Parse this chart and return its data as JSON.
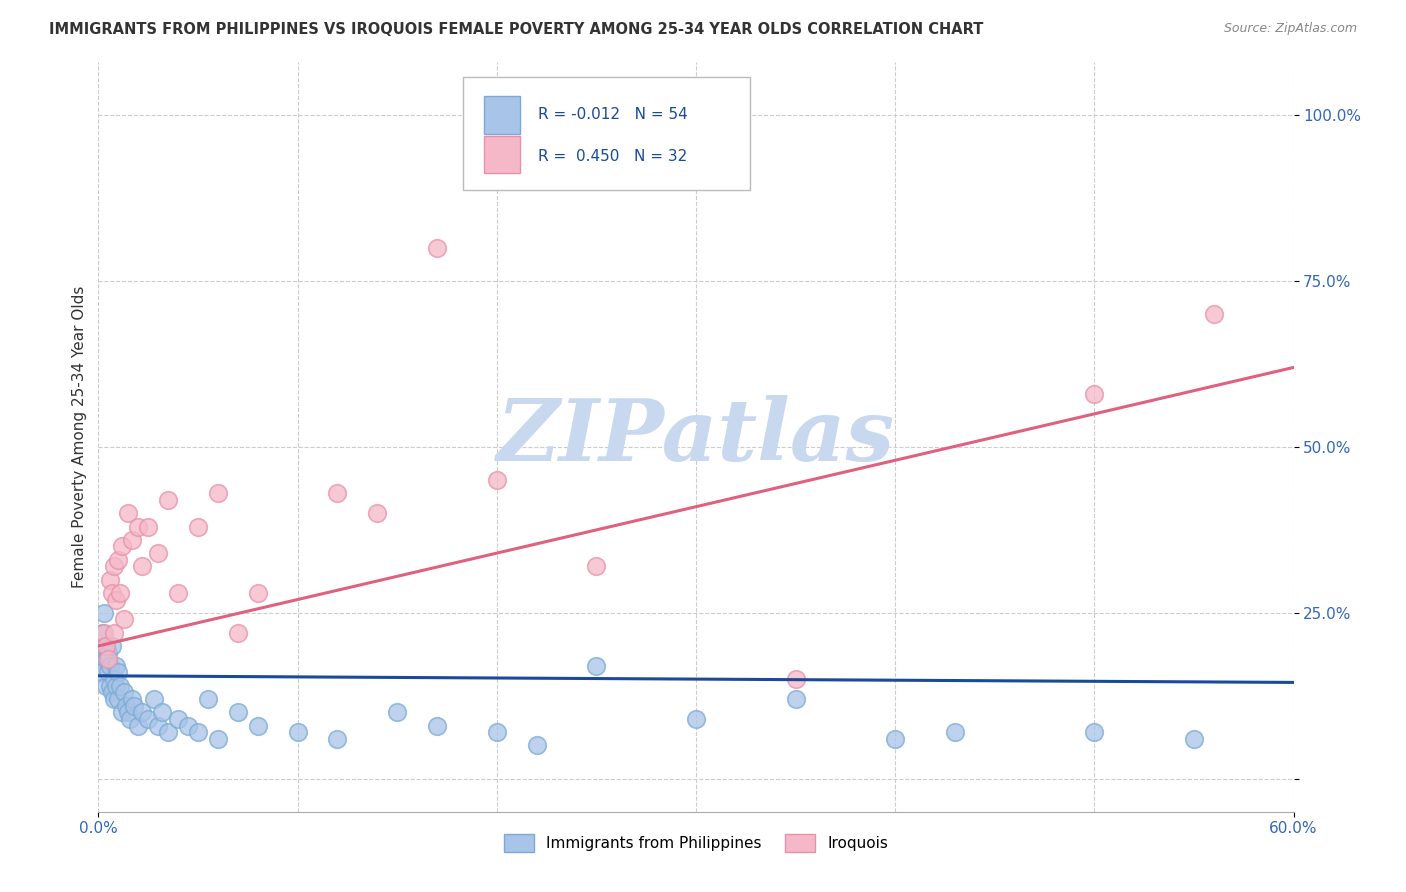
{
  "title": "IMMIGRANTS FROM PHILIPPINES VS IROQUOIS FEMALE POVERTY AMONG 25-34 YEAR OLDS CORRELATION CHART",
  "source": "Source: ZipAtlas.com",
  "ylabel": "Female Poverty Among 25-34 Year Olds",
  "xlim": [
    0.0,
    0.6
  ],
  "ylim": [
    -0.05,
    1.08
  ],
  "legend1_r": "-0.012",
  "legend1_n": "54",
  "legend2_r": "0.450",
  "legend2_n": "32",
  "blue_color": "#A8C4E8",
  "blue_edge_color": "#7AAAD4",
  "pink_color": "#F5B8C8",
  "pink_edge_color": "#E890A8",
  "blue_line_color": "#1A4A9A",
  "pink_line_color": "#E06080",
  "watermark_color": "#C8D8EE",
  "title_color": "#333333",
  "source_color": "#888888",
  "tick_color": "#3366BB",
  "ylabel_color": "#333333",
  "grid_color": "#CCCCCC",
  "blue_x": [
    0.001,
    0.002,
    0.002,
    0.003,
    0.003,
    0.004,
    0.004,
    0.005,
    0.005,
    0.006,
    0.006,
    0.007,
    0.007,
    0.008,
    0.008,
    0.009,
    0.009,
    0.01,
    0.01,
    0.011,
    0.012,
    0.013,
    0.014,
    0.015,
    0.016,
    0.017,
    0.018,
    0.02,
    0.022,
    0.025,
    0.028,
    0.03,
    0.032,
    0.035,
    0.04,
    0.045,
    0.05,
    0.055,
    0.06,
    0.07,
    0.08,
    0.1,
    0.12,
    0.15,
    0.17,
    0.2,
    0.22,
    0.25,
    0.3,
    0.35,
    0.4,
    0.43,
    0.5,
    0.55
  ],
  "blue_y": [
    0.18,
    0.16,
    0.22,
    0.2,
    0.25,
    0.18,
    0.14,
    0.16,
    0.19,
    0.14,
    0.17,
    0.13,
    0.2,
    0.15,
    0.12,
    0.17,
    0.14,
    0.16,
    0.12,
    0.14,
    0.1,
    0.13,
    0.11,
    0.1,
    0.09,
    0.12,
    0.11,
    0.08,
    0.1,
    0.09,
    0.12,
    0.08,
    0.1,
    0.07,
    0.09,
    0.08,
    0.07,
    0.12,
    0.06,
    0.1,
    0.08,
    0.07,
    0.06,
    0.1,
    0.08,
    0.07,
    0.05,
    0.17,
    0.09,
    0.12,
    0.06,
    0.07,
    0.07,
    0.06
  ],
  "pink_x": [
    0.003,
    0.004,
    0.005,
    0.006,
    0.007,
    0.008,
    0.008,
    0.009,
    0.01,
    0.011,
    0.012,
    0.013,
    0.015,
    0.017,
    0.02,
    0.022,
    0.025,
    0.03,
    0.035,
    0.04,
    0.05,
    0.06,
    0.07,
    0.08,
    0.12,
    0.14,
    0.17,
    0.2,
    0.25,
    0.35,
    0.5,
    0.56
  ],
  "pink_y": [
    0.22,
    0.2,
    0.18,
    0.3,
    0.28,
    0.32,
    0.22,
    0.27,
    0.33,
    0.28,
    0.35,
    0.24,
    0.4,
    0.36,
    0.38,
    0.32,
    0.38,
    0.34,
    0.42,
    0.28,
    0.38,
    0.43,
    0.22,
    0.28,
    0.43,
    0.4,
    0.8,
    0.45,
    0.32,
    0.15,
    0.58,
    0.7
  ],
  "blue_line_x": [
    0.0,
    0.6
  ],
  "blue_line_y": [
    0.155,
    0.145
  ],
  "pink_line_x": [
    0.0,
    0.6
  ],
  "pink_line_y": [
    0.2,
    0.62
  ]
}
